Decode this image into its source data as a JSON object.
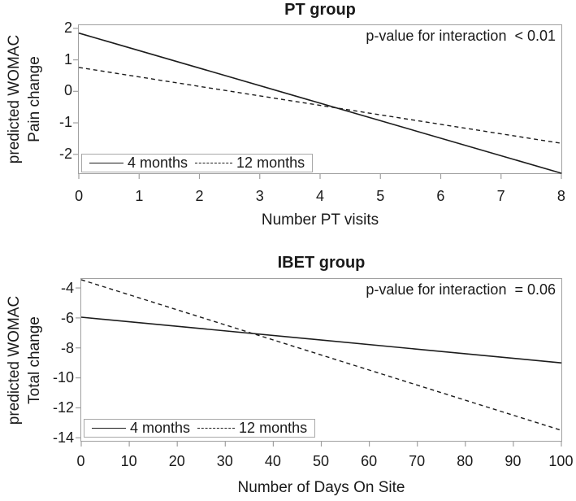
{
  "colors": {
    "frame": "#a0a0a0",
    "line": "#1c1c1c",
    "text": "#1a1a1a",
    "background": "#ffffff"
  },
  "chart_data": [
    {
      "type": "line",
      "title": "PT group",
      "annotation": "p-value for interaction  < 0.01",
      "xlabel": "Number PT visits",
      "ylabel": [
        "predicted WOMAC",
        "Pain change"
      ],
      "legend_position": "bottom-left inside plot",
      "grid": false,
      "xlim": [
        0,
        8
      ],
      "ylim": [
        -2.6,
        2.1
      ],
      "x_ticks": [
        0,
        1,
        2,
        3,
        4,
        5,
        6,
        7,
        8
      ],
      "y_ticks": [
        2,
        1,
        0,
        -1,
        -2
      ],
      "series": [
        {
          "name": "4 months",
          "line_style": "solid",
          "x": [
            0,
            8
          ],
          "y": [
            1.85,
            -2.6
          ]
        },
        {
          "name": "12 months",
          "line_style": "dashed",
          "x": [
            0,
            8
          ],
          "y": [
            0.76,
            -1.65
          ]
        }
      ]
    },
    {
      "type": "line",
      "title": "IBET group",
      "annotation": "p-value for interaction  = 0.06",
      "xlabel": "Number of Days On Site",
      "ylabel": [
        "predicted WOMAC",
        "Total change"
      ],
      "legend_position": "bottom-left inside plot",
      "grid": false,
      "xlim": [
        0,
        100
      ],
      "ylim": [
        -14.2,
        -3.4
      ],
      "x_ticks": [
        0,
        10,
        20,
        30,
        40,
        50,
        60,
        70,
        80,
        90,
        100
      ],
      "y_ticks": [
        -4,
        -6,
        -8,
        -10,
        -12,
        -14
      ],
      "series": [
        {
          "name": "4 months",
          "line_style": "solid",
          "x": [
            0,
            100
          ],
          "y": [
            -5.95,
            -9.0
          ]
        },
        {
          "name": "12 months",
          "line_style": "dashed",
          "x": [
            0,
            100
          ],
          "y": [
            -3.45,
            -13.5
          ]
        }
      ]
    }
  ]
}
